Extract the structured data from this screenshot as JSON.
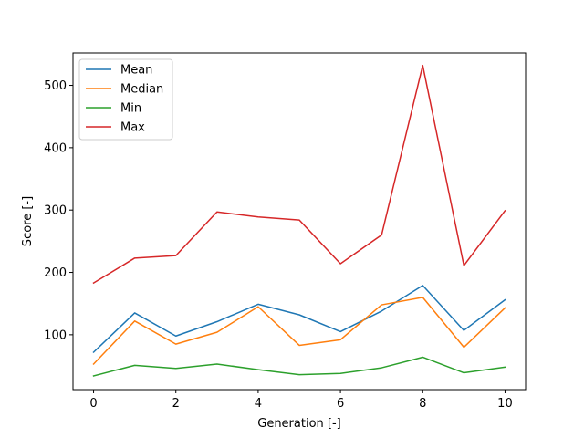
{
  "chart_data": {
    "type": "line",
    "title": "",
    "xlabel": "Generation [-]",
    "ylabel": "Score [-]",
    "x": [
      0,
      1,
      2,
      3,
      4,
      5,
      6,
      7,
      8,
      9,
      10
    ],
    "xlim": [
      -0.5,
      10.5
    ],
    "ylim": [
      12,
      552
    ],
    "xticks": [
      0,
      2,
      4,
      6,
      8,
      10
    ],
    "yticks": [
      100,
      200,
      300,
      400,
      500
    ],
    "grid": false,
    "legend_position": "upper-left",
    "series": [
      {
        "name": "Mean",
        "color": "#1f77b4",
        "values": [
          72,
          135,
          98,
          121,
          149,
          132,
          105,
          138,
          179,
          107,
          156
        ]
      },
      {
        "name": "Median",
        "color": "#ff7f0e",
        "values": [
          53,
          122,
          85,
          104,
          145,
          83,
          92,
          148,
          160,
          80,
          143
        ]
      },
      {
        "name": "Min",
        "color": "#2ca02c",
        "values": [
          34,
          51,
          46,
          53,
          44,
          36,
          38,
          47,
          64,
          39,
          48
        ]
      },
      {
        "name": "Max",
        "color": "#d62728",
        "values": [
          183,
          223,
          227,
          297,
          289,
          284,
          214,
          260,
          532,
          211,
          299
        ]
      }
    ]
  }
}
